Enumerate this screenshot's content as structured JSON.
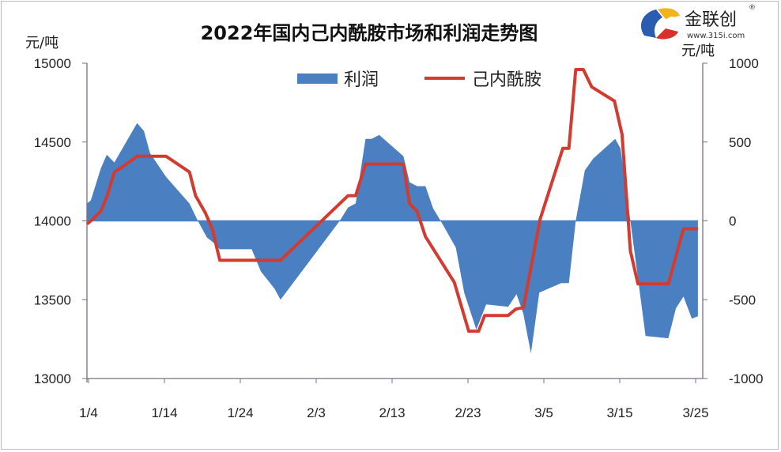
{
  "chart_data": {
    "type": "line+area",
    "title": "2022年国内己内酰胺市场和利润走势图",
    "ylabel_left": "元/吨",
    "ylabel_right": "元/吨",
    "ylim_left": [
      13000,
      15000
    ],
    "ylim_right": [
      -1000,
      1000
    ],
    "yticks_left": [
      "15000",
      "14500",
      "14000",
      "13500",
      "13000"
    ],
    "yticks_right": [
      "1000",
      "500",
      "0",
      "-500",
      "-1000"
    ],
    "xticks": [
      "1/4",
      "1/14",
      "1/24",
      "2/3",
      "2/13",
      "2/23",
      "3/5",
      "3/15",
      "3/25"
    ],
    "x_unit": "days since 1/4",
    "legend": {
      "position": "top-center",
      "entries": [
        "利润",
        "己内酰胺"
      ]
    },
    "colors": {
      "profit": "#4a7fc1",
      "price": "#d23b2f"
    },
    "series": [
      {
        "name": "利润",
        "kind": "area",
        "axis": "right",
        "x": [
          -0.2,
          0.3,
          1.6,
          2.4,
          3.4,
          6.4,
          7.3,
          8.1,
          10.2,
          13.3,
          14.4,
          15.6,
          16.5,
          17.3,
          21.5,
          22.7,
          24.5,
          25.3,
          33.1,
          34.2,
          35.2,
          36.5,
          37.3,
          38.3,
          41.5,
          42.3,
          43.3,
          44.4,
          45.4,
          46.4,
          48.4,
          49.5,
          51.1,
          52.4,
          55.3,
          56.4,
          57.3,
          58.3,
          59.4,
          62.3,
          63.3,
          64.2,
          65.4,
          66.5,
          69.4,
          70.1,
          71.4,
          72.2,
          73.4,
          76.4,
          77.4,
          78.4,
          79.5,
          80.3
        ],
        "values": [
          110,
          130,
          330,
          420,
          370,
          620,
          570,
          430,
          280,
          110,
          0,
          -105,
          -140,
          -180,
          -180,
          -320,
          -430,
          -500,
          0,
          85,
          110,
          520,
          520,
          545,
          410,
          245,
          220,
          220,
          80,
          0,
          -170,
          -455,
          -690,
          -530,
          -545,
          -465,
          -590,
          -840,
          -455,
          -395,
          -395,
          0,
          320,
          395,
          520,
          460,
          0,
          -290,
          -730,
          -745,
          -555,
          -480,
          -620,
          -605
        ]
      },
      {
        "name": "己内酰胺",
        "kind": "line",
        "axis": "left",
        "x": [
          -0.2,
          0.3,
          1.6,
          2.4,
          3.4,
          4.7,
          6.4,
          10.2,
          13.3,
          14.1,
          15.4,
          16.3,
          17.3,
          25.3,
          34.2,
          35.2,
          36.5,
          41.5,
          42.3,
          43.3,
          44.4,
          48.2,
          50.1,
          51.4,
          52.2,
          55.3,
          56.3,
          57.3,
          59.5,
          62.5,
          63.3,
          64.2,
          65.2,
          66.3,
          69.3,
          70.3,
          71.4,
          72.4,
          76.4,
          78.4,
          80.3
        ],
        "values": [
          13980,
          14000,
          14060,
          14150,
          14310,
          14350,
          14410,
          14410,
          14310,
          14160,
          14050,
          13950,
          13750,
          13750,
          14160,
          14160,
          14360,
          14360,
          14110,
          14060,
          13900,
          13610,
          13300,
          13300,
          13400,
          13400,
          13440,
          13450,
          14010,
          14460,
          14460,
          14960,
          14960,
          14850,
          14760,
          14550,
          13810,
          13600,
          13600,
          13950,
          13950
        ]
      }
    ]
  },
  "logo": {
    "name": "金联创",
    "url": "www.315i.com"
  }
}
